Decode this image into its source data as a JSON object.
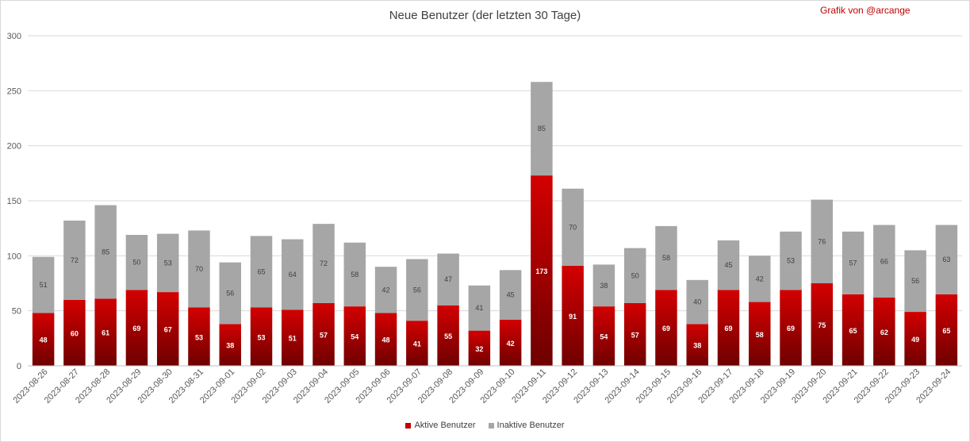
{
  "chart_data": {
    "type": "bar",
    "stacked": true,
    "title": "Neue Benutzer (der letzten 30 Tage)",
    "credit": "Grafik von @arcange",
    "ylim": [
      0,
      300
    ],
    "yticks": [
      0,
      50,
      100,
      150,
      200,
      250,
      300
    ],
    "grid": true,
    "legend_position": "bottom",
    "categories": [
      "2023-08-26",
      "2023-08-27",
      "2023-08-28",
      "2023-08-29",
      "2023-08-30",
      "2023-08-31",
      "2023-09-01",
      "2023-09-02",
      "2023-09-03",
      "2023-09-04",
      "2023-09-05",
      "2023-09-06",
      "2023-09-07",
      "2023-09-08",
      "2023-09-09",
      "2023-09-10",
      "2023-09-11",
      "2023-09-12",
      "2023-09-13",
      "2023-09-14",
      "2023-09-15",
      "2023-09-16",
      "2023-09-17",
      "2023-09-18",
      "2023-09-19",
      "2023-09-20",
      "2023-09-21",
      "2023-09-22",
      "2023-09-23",
      "2023-09-24"
    ],
    "series": [
      {
        "name": "Aktive Benutzer",
        "color": "#c00000",
        "values": [
          48,
          60,
          61,
          69,
          67,
          53,
          38,
          53,
          51,
          57,
          54,
          48,
          41,
          55,
          32,
          42,
          173,
          91,
          54,
          57,
          69,
          38,
          69,
          58,
          69,
          75,
          65,
          62,
          49,
          65
        ]
      },
      {
        "name": "Inaktive Benutzer",
        "color": "#a6a6a6",
        "values": [
          51,
          72,
          85,
          50,
          53,
          70,
          56,
          65,
          64,
          72,
          58,
          42,
          56,
          47,
          41,
          45,
          85,
          70,
          38,
          50,
          58,
          40,
          45,
          42,
          53,
          76,
          57,
          66,
          56,
          63
        ]
      }
    ]
  }
}
